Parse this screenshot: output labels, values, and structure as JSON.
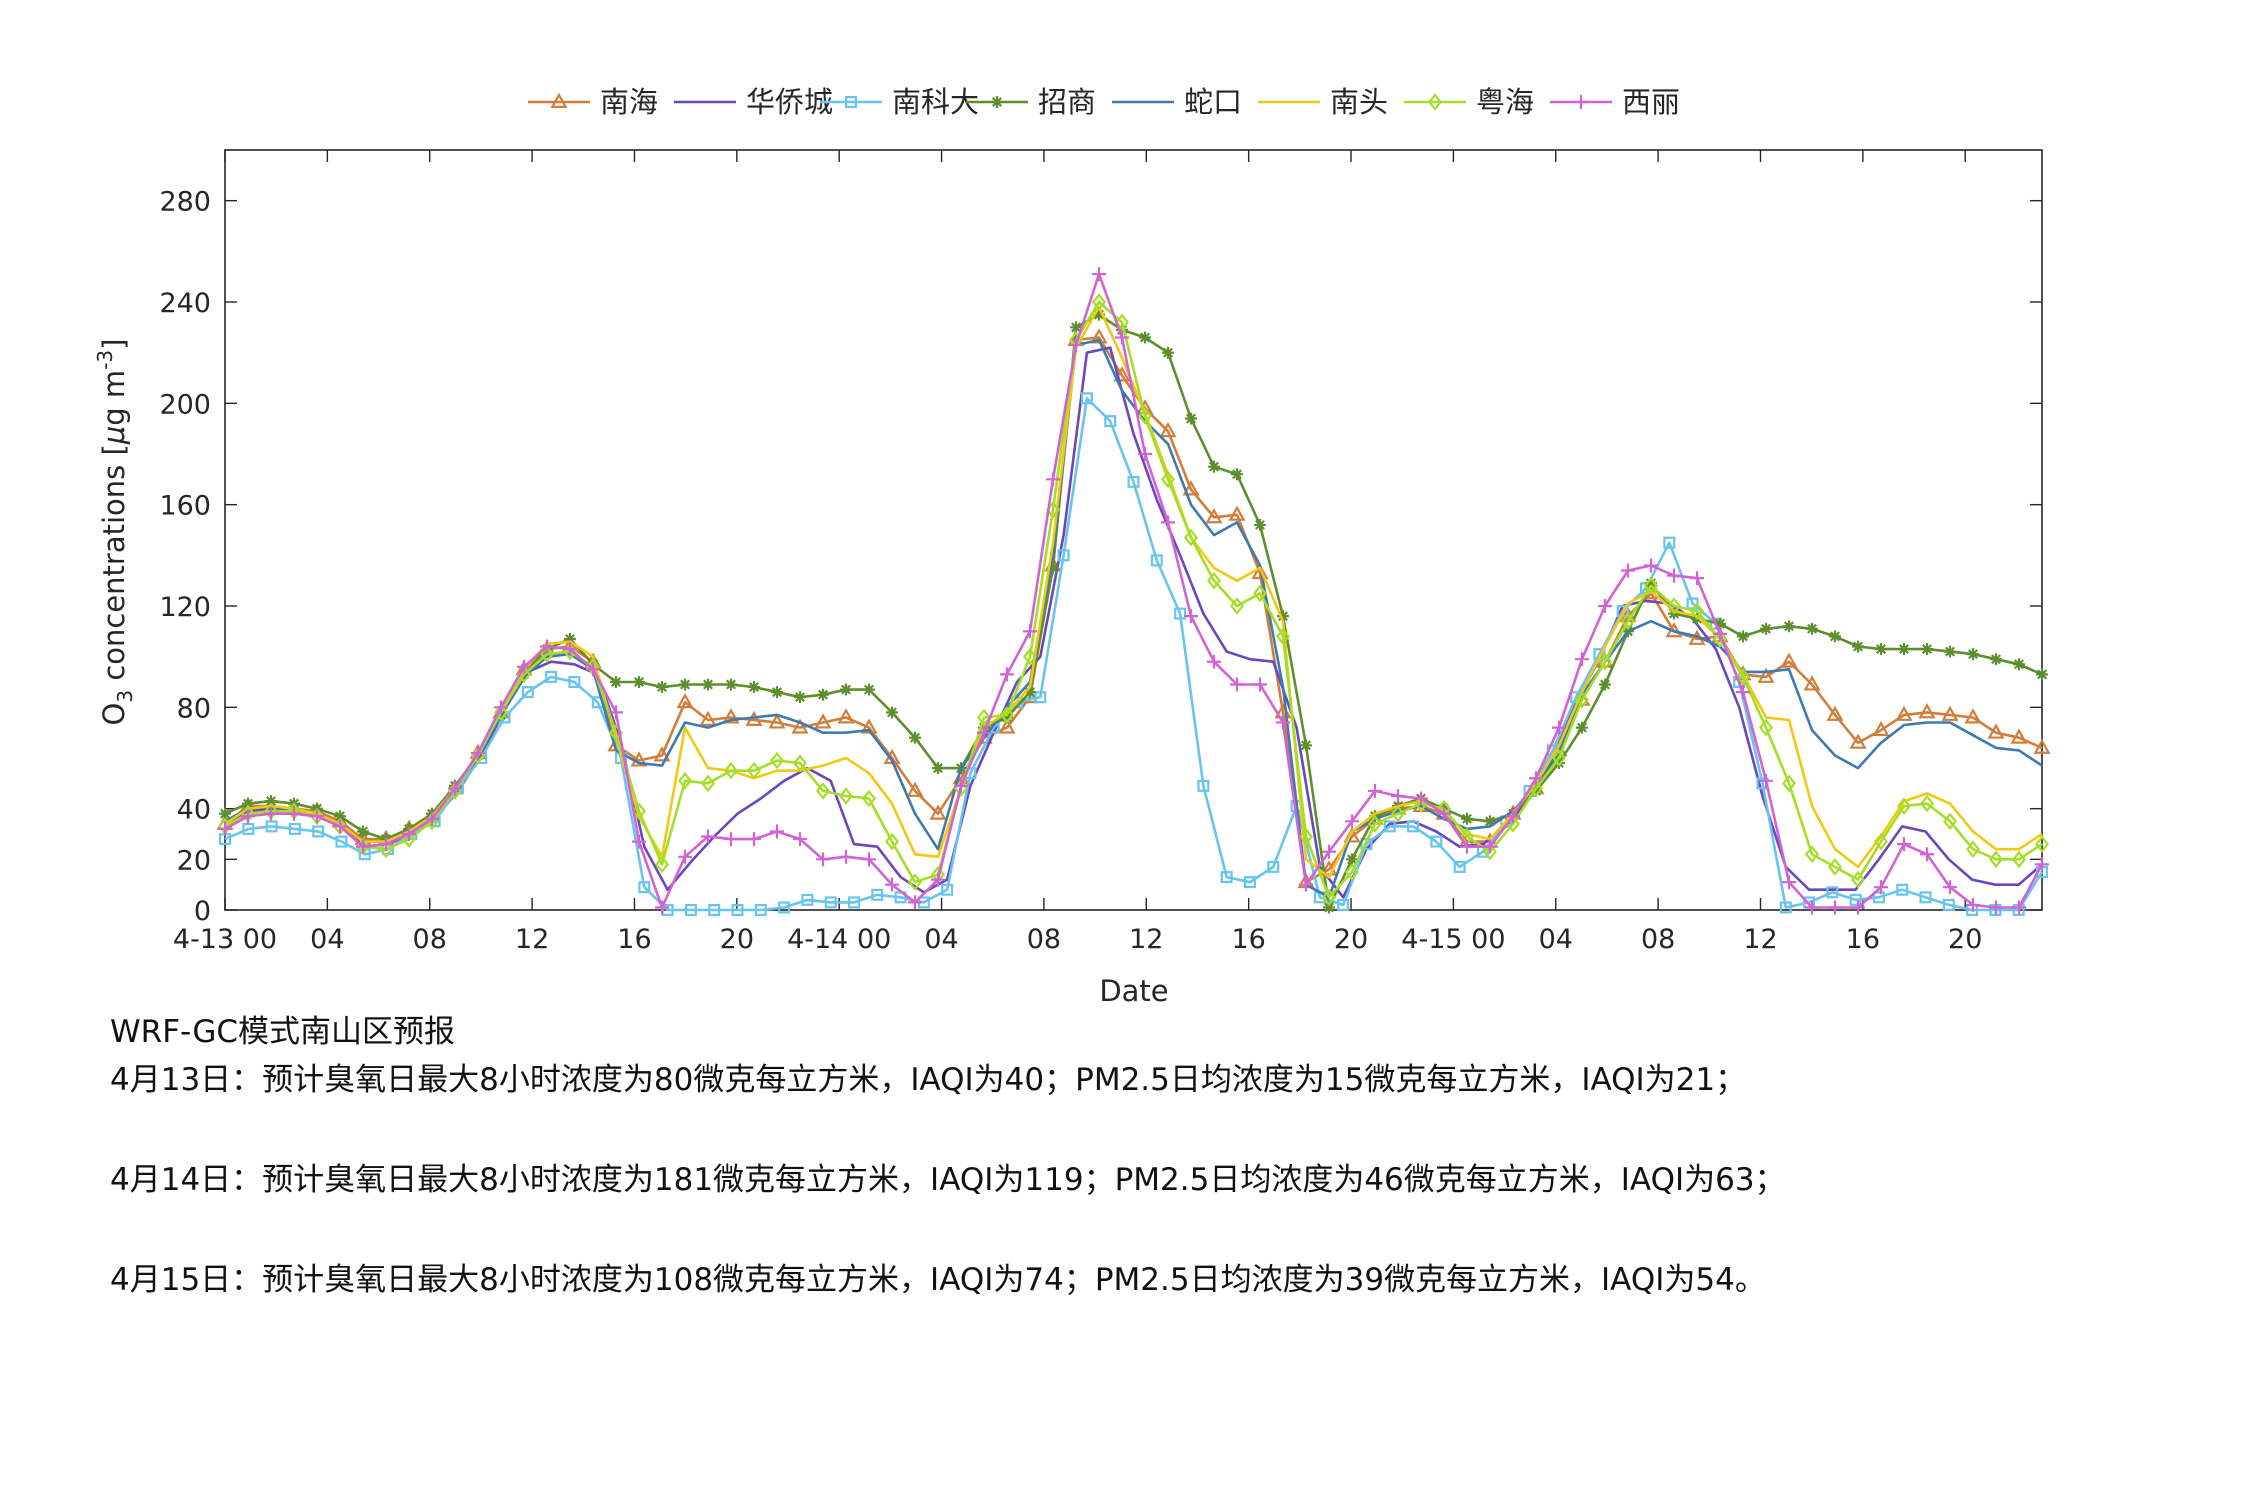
{
  "chart_data": {
    "type": "line",
    "title": "",
    "xlabel": "Date",
    "ylabel": "O3 concentrations [μg m-3]",
    "ylabel_parts": {
      "a": "O",
      "b": "3",
      "c": " concentrations [",
      "d": "μ",
      "e": "g m",
      "f": "-3",
      "g": "]"
    },
    "ylim": [
      0,
      300
    ],
    "xlim": [
      0,
      71
    ],
    "y_ticks": [
      0,
      20,
      40,
      80,
      120,
      160,
      200,
      240,
      280
    ],
    "x_tick_positions": [
      0,
      4,
      8,
      12,
      16,
      20,
      24,
      28,
      32,
      36,
      40,
      44,
      48,
      52,
      56,
      60,
      64,
      68
    ],
    "x_tick_labels": [
      "4-13 00",
      "04",
      "08",
      "12",
      "16",
      "20",
      "4-14 00",
      "04",
      "08",
      "12",
      "16",
      "20",
      "4-15 00",
      "04",
      "08",
      "12",
      "16",
      "20"
    ],
    "grid": false,
    "legend_position": "top",
    "series": [
      {
        "name": "南海",
        "color": "#D37D3B",
        "marker": "triangle",
        "values": [
          34,
          41,
          41,
          40,
          39,
          35,
          28,
          28,
          32,
          37,
          48,
          62,
          78,
          95,
          103,
          104,
          98,
          65,
          59,
          61,
          82,
          75,
          76,
          75,
          74,
          72,
          74,
          76,
          72,
          60,
          47,
          38,
          52,
          68,
          72,
          84,
          136,
          225,
          226,
          211,
          198,
          189,
          166,
          155,
          156,
          133,
          78,
          11,
          16,
          29,
          36,
          40,
          41,
          38,
          27,
          27,
          38,
          48,
          63,
          83,
          98,
          116,
          125,
          110,
          107,
          108,
          93,
          92,
          98,
          89,
          77,
          66,
          71,
          77,
          78,
          77,
          76,
          70,
          68,
          64
        ]
      },
      {
        "name": "华侨城",
        "color": "#6B47BE",
        "marker": "none",
        "values": [
          33,
          39,
          40,
          39,
          37,
          33,
          25,
          26,
          30,
          36,
          47,
          61,
          79,
          94,
          98,
          97,
          93,
          66,
          25,
          8,
          19,
          29,
          38,
          44,
          51,
          56,
          51,
          26,
          25,
          13,
          7,
          12,
          49,
          70,
          90,
          100,
          148,
          220,
          222,
          188,
          162,
          140,
          117,
          102,
          99,
          98,
          72,
          17,
          5,
          24,
          34,
          35,
          31,
          25,
          26,
          33,
          44,
          60,
          82,
          99,
          120,
          122,
          121,
          115,
          103,
          80,
          45,
          17,
          8,
          8,
          8,
          20,
          33,
          31,
          20,
          12,
          10,
          10,
          18
        ]
      },
      {
        "name": "南科大",
        "color": "#68C4EE",
        "marker": "square",
        "values": [
          28,
          32,
          33,
          32,
          31,
          27,
          22,
          24,
          30,
          35,
          48,
          60,
          76,
          86,
          92,
          90,
          82,
          60,
          9,
          0,
          0,
          0,
          0,
          0,
          1,
          4,
          3,
          3,
          6,
          5,
          3,
          8,
          54,
          72,
          82,
          84,
          140,
          202,
          193,
          169,
          138,
          117,
          49,
          13,
          11,
          17,
          41,
          5,
          2,
          26,
          33,
          33,
          27,
          17,
          23,
          35,
          47,
          63,
          84,
          101,
          118,
          127,
          145,
          121,
          113,
          90,
          50,
          1,
          3,
          7,
          4,
          5,
          8,
          5,
          2,
          0,
          0,
          0,
          15
        ]
      },
      {
        "name": "招商",
        "color": "#5E8E2D",
        "marker": "star",
        "values": [
          38,
          42,
          43,
          42,
          40,
          37,
          31,
          28,
          32,
          38,
          49,
          61,
          77,
          93,
          103,
          107,
          97,
          90,
          90,
          88,
          89,
          89,
          89,
          88,
          86,
          84,
          85,
          87,
          87,
          78,
          68,
          56,
          56,
          72,
          76,
          86,
          135,
          230,
          235,
          229,
          226,
          220,
          194,
          175,
          172,
          152,
          116,
          65,
          1,
          20,
          37,
          41,
          44,
          40,
          36,
          35,
          38,
          47,
          58,
          72,
          89,
          110,
          129,
          117,
          115,
          113,
          108,
          111,
          112,
          111,
          108,
          104,
          103,
          103,
          103,
          102,
          101,
          99,
          97,
          93
        ]
      },
      {
        "name": "蛇口",
        "color": "#3E7AB0",
        "marker": "none",
        "values": [
          35,
          40,
          41,
          40,
          38,
          34,
          27,
          27,
          31,
          37,
          48,
          60,
          77,
          92,
          100,
          101,
          95,
          63,
          58,
          57,
          74,
          72,
          75,
          76,
          77,
          74,
          70,
          70,
          71,
          59,
          38,
          24,
          56,
          68,
          80,
          90,
          140,
          223,
          225,
          205,
          193,
          184,
          160,
          148,
          153,
          136,
          88,
          10,
          5,
          31,
          36,
          39,
          41,
          36,
          32,
          33,
          39,
          49,
          62,
          85,
          98,
          110,
          114,
          110,
          108,
          104,
          94,
          94,
          95,
          71,
          61,
          56,
          66,
          73,
          74,
          74,
          69,
          64,
          63,
          57
        ]
      },
      {
        "name": "南头",
        "color": "#F2C813",
        "marker": "none",
        "values": [
          34,
          40,
          41,
          40,
          38,
          34,
          27,
          27,
          31,
          37,
          48,
          62,
          79,
          95,
          105,
          106,
          100,
          68,
          37,
          21,
          72,
          56,
          55,
          52,
          55,
          55,
          57,
          60,
          54,
          42,
          22,
          21,
          48,
          72,
          78,
          88,
          145,
          222,
          238,
          218,
          196,
          172,
          147,
          135,
          130,
          135,
          114,
          20,
          13,
          31,
          38,
          41,
          43,
          39,
          30,
          28,
          38,
          50,
          65,
          86,
          104,
          121,
          126,
          118,
          116,
          107,
          93,
          76,
          75,
          41,
          24,
          17,
          29,
          43,
          46,
          42,
          31,
          24,
          24,
          30
        ]
      },
      {
        "name": "粤海",
        "color": "#A4DE26",
        "marker": "diamond",
        "values": [
          33,
          38,
          39,
          39,
          37,
          33,
          25,
          24,
          28,
          35,
          47,
          61,
          78,
          93,
          101,
          102,
          96,
          70,
          39,
          18,
          51,
          50,
          55,
          55,
          59,
          58,
          47,
          45,
          44,
          27,
          11,
          14,
          48,
          76,
          77,
          100,
          158,
          225,
          240,
          232,
          195,
          170,
          147,
          130,
          120,
          125,
          108,
          29,
          5,
          15,
          34,
          38,
          42,
          40,
          29,
          23,
          34,
          48,
          60,
          83,
          98,
          114,
          128,
          120,
          118,
          107,
          92,
          72,
          50,
          22,
          17,
          12,
          27,
          41,
          42,
          35,
          24,
          20,
          20,
          26
        ]
      },
      {
        "name": "西丽",
        "color": "#D363D4",
        "marker": "plus",
        "values": [
          32,
          37,
          38,
          38,
          37,
          33,
          25,
          26,
          30,
          36,
          48,
          62,
          80,
          96,
          104,
          103,
          95,
          78,
          27,
          1,
          21,
          29,
          28,
          28,
          31,
          28,
          20,
          21,
          20,
          10,
          3,
          12,
          49,
          70,
          93,
          110,
          170,
          223,
          251,
          226,
          180,
          153,
          116,
          98,
          89,
          89,
          74,
          10,
          23,
          35,
          47,
          45,
          44,
          38,
          25,
          25,
          37,
          52,
          72,
          99,
          120,
          134,
          136,
          132,
          131,
          109,
          86,
          51,
          11,
          1,
          1,
          1,
          9,
          26,
          22,
          9,
          2,
          1,
          1,
          18
        ]
      }
    ]
  },
  "forecast": {
    "title": "WRF-GC模式南山区预报",
    "lines": [
      "4月13日：预计臭氧日最大8小时浓度为80微克每立方米，IAQI为40；PM2.5日均浓度为15微克每立方米，IAQI为21；",
      "4月14日：预计臭氧日最大8小时浓度为181微克每立方米，IAQI为119；PM2.5日均浓度为46微克每立方米，IAQI为63；",
      "4月15日：预计臭氧日最大8小时浓度为108微克每立方米，IAQI为74；PM2.5日均浓度为39微克每立方米，IAQI为54。"
    ]
  }
}
